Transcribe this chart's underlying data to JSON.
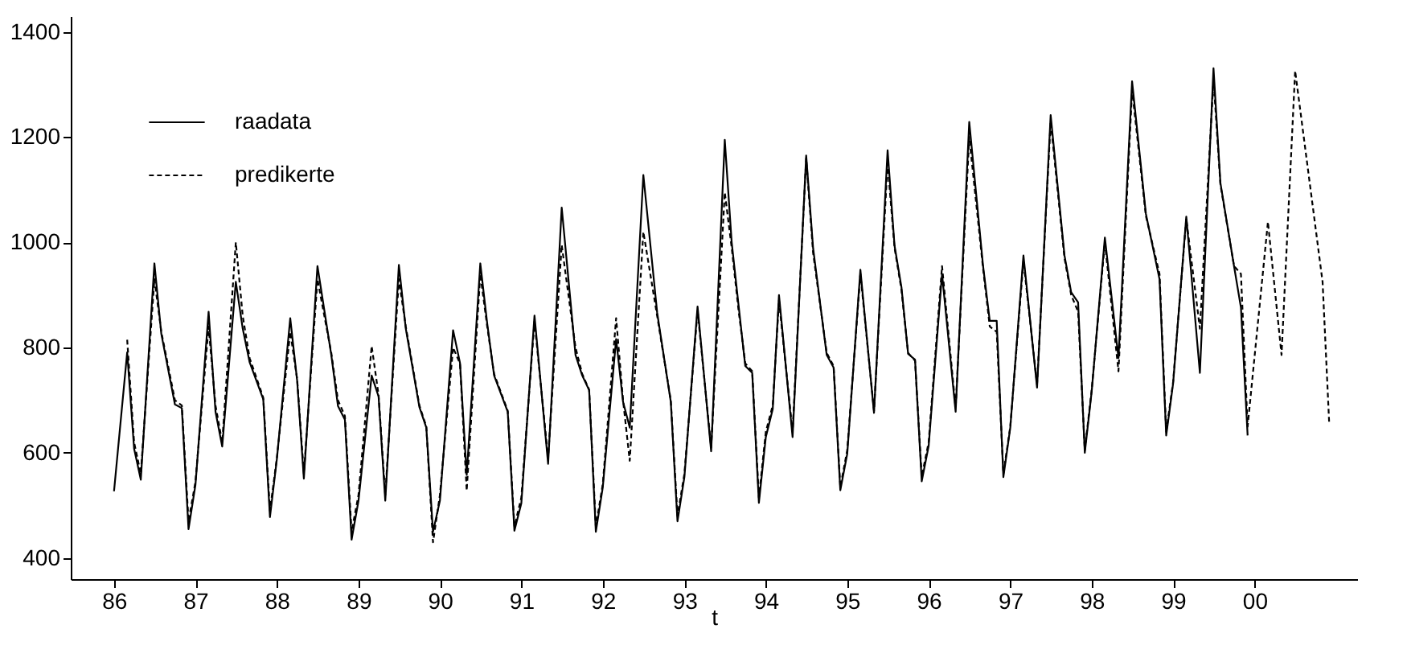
{
  "chart_data": {
    "type": "line",
    "xlabel": "t",
    "xlim": [
      "1985-06-21",
      "2001-04-05"
    ],
    "ylim": [
      360,
      1430
    ],
    "xticks": [
      {
        "value": "1986",
        "label": "86"
      },
      {
        "value": "1987",
        "label": "87"
      },
      {
        "value": "1988",
        "label": "88"
      },
      {
        "value": "1989",
        "label": "89"
      },
      {
        "value": "1990",
        "label": "90"
      },
      {
        "value": "1991",
        "label": "91"
      },
      {
        "value": "1992",
        "label": "92"
      },
      {
        "value": "1993",
        "label": "93"
      },
      {
        "value": "1994",
        "label": "94"
      },
      {
        "value": "1995",
        "label": "95"
      },
      {
        "value": "1996",
        "label": "96"
      },
      {
        "value": "1997",
        "label": "97"
      },
      {
        "value": "1998",
        "label": "98"
      },
      {
        "value": "1999",
        "label": "99"
      },
      {
        "value": "2000",
        "label": "00"
      }
    ],
    "yticks": [
      400,
      600,
      800,
      1000,
      1200,
      1400
    ],
    "legend": "top left",
    "series": [
      {
        "name": "raadata",
        "color": "#000000",
        "line_style": "solid",
        "x": [
          "1986-01",
          "1986-03",
          "1986-04",
          "1986-05",
          "1986-07",
          "1986-08",
          "1986-10",
          "1986-11",
          "1986-12",
          "1987-01",
          "1987-03",
          "1987-04",
          "1987-05",
          "1987-07",
          "1987-08",
          "1987-09",
          "1987-11",
          "1987-12",
          "1988-01",
          "1988-03",
          "1988-04",
          "1988-05",
          "1988-07",
          "1988-09",
          "1988-10",
          "1988-11",
          "1988-12",
          "1989-01",
          "1989-03",
          "1989-04",
          "1989-05",
          "1989-07",
          "1989-08",
          "1989-10",
          "1989-11",
          "1989-12",
          "1990-01",
          "1990-03",
          "1990-04",
          "1990-05",
          "1990-07",
          "1990-08",
          "1990-09",
          "1990-11",
          "1990-12",
          "1991-01",
          "1991-03",
          "1991-05",
          "1991-07",
          "1991-09",
          "1991-10",
          "1991-11",
          "1991-12",
          "1992-01",
          "1992-03",
          "1992-04",
          "1992-05",
          "1992-07",
          "1992-09",
          "1992-11",
          "1992-12",
          "1993-01",
          "1993-03",
          "1993-05",
          "1993-07",
          "1993-08",
          "1993-09",
          "1993-10",
          "1993-11",
          "1993-12",
          "1994-01",
          "1994-02",
          "1994-03",
          "1994-05",
          "1994-07",
          "1994-08",
          "1994-10",
          "1994-11",
          "1994-12",
          "1995-01",
          "1995-03",
          "1995-05",
          "1995-07",
          "1995-08",
          "1995-09",
          "1995-10",
          "1995-11",
          "1995-12",
          "1996-01",
          "1996-03",
          "1996-05",
          "1996-07",
          "1996-09",
          "1996-10",
          "1996-11",
          "1996-12",
          "1997-01",
          "1997-03",
          "1997-05",
          "1997-07",
          "1997-09",
          "1997-10",
          "1997-11",
          "1997-12",
          "1998-01",
          "1998-03",
          "1998-05",
          "1998-07",
          "1998-09",
          "1998-11",
          "1998-12",
          "1999-01",
          "1999-03",
          "1999-05",
          "1999-07",
          "1999-08",
          "1999-10",
          "1999-11",
          "1999-12"
        ],
        "values": [
          527,
          791,
          608,
          549,
          960,
          826,
          692,
          685,
          455,
          539,
          868,
          678,
          612,
          925,
          836,
          772,
          702,
          478,
          588,
          856,
          737,
          551,
          955,
          786,
          689,
          663,
          435,
          509,
          747,
          707,
          509,
          957,
          836,
          687,
          648,
          450,
          509,
          833,
          771,
          558,
          960,
          846,
          747,
          678,
          452,
          504,
          861,
          579,
          1066,
          786,
          747,
          719,
          450,
          534,
          816,
          697,
          648,
          1128,
          866,
          697,
          470,
          554,
          878,
          603,
          1195,
          1000,
          880,
          765,
          752,
          505,
          630,
          683,
          900,
          630,
          1165,
          989,
          786,
          762,
          529,
          598,
          948,
          676,
          1175,
          994,
          915,
          788,
          777,
          546,
          613,
          940,
          678,
          1229,
          955,
          851,
          851,
          554,
          648,
          975,
          724,
          1242,
          975,
          905,
          886,
          600,
          717,
          1009,
          780,
          1306,
          1054,
          930,
          633,
          732,
          1049,
          752,
          1331,
          1113,
          955,
          876,
          633
        ]
      },
      {
        "name": "predikerte",
        "color": "#000000",
        "line_style": "dashed",
        "x": [
          "1986-03",
          "1986-04",
          "1986-05",
          "1986-07",
          "1986-08",
          "1986-10",
          "1986-11",
          "1986-12",
          "1987-01",
          "1987-03",
          "1987-04",
          "1987-05",
          "1987-07",
          "1987-08",
          "1987-09",
          "1987-11",
          "1987-12",
          "1988-01",
          "1988-03",
          "1988-04",
          "1988-05",
          "1988-07",
          "1988-09",
          "1988-10",
          "1988-11",
          "1988-12",
          "1989-01",
          "1989-03",
          "1989-04",
          "1989-05",
          "1989-07",
          "1989-08",
          "1989-10",
          "1989-11",
          "1989-12",
          "1990-01",
          "1990-03",
          "1990-04",
          "1990-05",
          "1990-07",
          "1990-08",
          "1990-09",
          "1990-11",
          "1990-12",
          "1991-01",
          "1991-03",
          "1991-05",
          "1991-07",
          "1991-09",
          "1991-10",
          "1991-11",
          "1991-12",
          "1992-01",
          "1992-03",
          "1992-04",
          "1992-05",
          "1992-07",
          "1992-09",
          "1992-11",
          "1992-12",
          "1993-01",
          "1993-03",
          "1993-05",
          "1993-07",
          "1993-08",
          "1993-09",
          "1993-10",
          "1993-11",
          "1993-12",
          "1994-01",
          "1994-02",
          "1994-03",
          "1994-05",
          "1994-07",
          "1994-08",
          "1994-10",
          "1994-11",
          "1994-12",
          "1995-01",
          "1995-03",
          "1995-05",
          "1995-07",
          "1995-08",
          "1995-09",
          "1995-10",
          "1995-11",
          "1995-12",
          "1996-01",
          "1996-03",
          "1996-05",
          "1996-07",
          "1996-09",
          "1996-10",
          "1996-11",
          "1996-12",
          "1997-01",
          "1997-03",
          "1997-05",
          "1997-07",
          "1997-09",
          "1997-10",
          "1997-11",
          "1997-12",
          "1998-01",
          "1998-03",
          "1998-05",
          "1998-07",
          "1998-09",
          "1998-11",
          "1998-12",
          "1999-01",
          "1999-03",
          "1999-05",
          "1999-07",
          "1999-08",
          "1999-10",
          "1999-11",
          "1999-12",
          "2000-03",
          "2000-05",
          "2000-07",
          "2000-11",
          "2000-12"
        ],
        "values": [
          815,
          620,
          560,
          930,
          830,
          700,
          690,
          470,
          545,
          840,
          690,
          620,
          1000,
          860,
          780,
          705,
          490,
          590,
          830,
          740,
          560,
          930,
          790,
          700,
          670,
          450,
          520,
          803,
          710,
          520,
          930,
          840,
          690,
          650,
          430,
          520,
          800,
          770,
          528,
          940,
          840,
          750,
          680,
          460,
          515,
          850,
          590,
          995,
          800,
          750,
          720,
          460,
          540,
          856,
          700,
          585,
          1020,
          860,
          700,
          480,
          560,
          870,
          610,
          1095,
          990,
          870,
          770,
          755,
          515,
          640,
          690,
          890,
          640,
          1160,
          980,
          790,
          765,
          535,
          605,
          940,
          680,
          1150,
          990,
          910,
          790,
          775,
          555,
          620,
          955,
          685,
          1200,
          950,
          840,
          830,
          560,
          650,
          965,
          730,
          1230,
          970,
          900,
          868,
          605,
          720,
          1000,
          755,
          1290,
          1050,
          940,
          640,
          735,
          1045,
          836,
          1310,
          1110,
          955,
          940,
          650,
          1039,
          786,
          1326,
          925,
          653
        ]
      }
    ]
  }
}
